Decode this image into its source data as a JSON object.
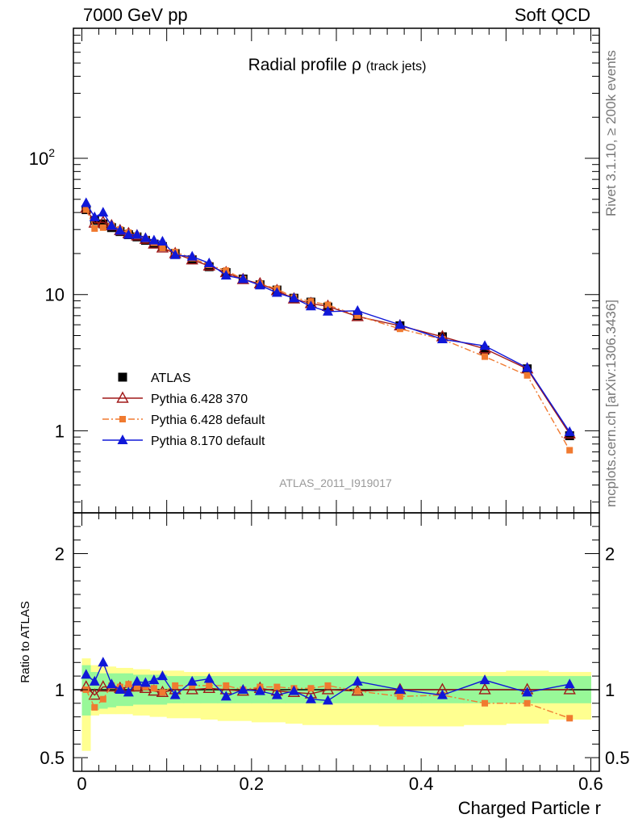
{
  "header": {
    "left": "7000 GeV pp",
    "right": "Soft QCD"
  },
  "side_labels": {
    "rivet": "Rivet 3.1.10, ≥ 200k events",
    "mcplots": "mcplots.cern.ch [arXiv:1306.3436]"
  },
  "chart_data": [
    {
      "panel": "main",
      "type": "scatter",
      "title": "Radial profile ρ",
      "title_suffix": "(track jets)",
      "xlabel": "Charged Particle r",
      "ylabel": "",
      "yscale": "log",
      "xlim": [
        -0.01,
        0.61
      ],
      "ylim": [
        0.25,
        900
      ],
      "yticks": [
        {
          "value": 1,
          "label": "1"
        },
        {
          "value": 10,
          "label": "10"
        },
        {
          "value": 100,
          "label": "10",
          "sup": "2"
        }
      ],
      "watermark": "ATLAS_2011_I919017",
      "legend_position": "middle-left",
      "x": [
        0.005,
        0.015,
        0.025,
        0.035,
        0.045,
        0.055,
        0.065,
        0.075,
        0.085,
        0.095,
        0.11,
        0.13,
        0.15,
        0.17,
        0.19,
        0.21,
        0.23,
        0.25,
        0.27,
        0.29,
        0.325,
        0.375,
        0.425,
        0.475,
        0.525,
        0.575
      ],
      "series": [
        {
          "name": "ATLAS",
          "color": "#000000",
          "marker": "square-filled",
          "values": [
            42,
            35,
            33,
            31,
            29,
            27.5,
            26.5,
            25,
            23.5,
            22.5,
            20,
            18,
            16,
            14.5,
            13,
            11.8,
            10.8,
            9.4,
            8.8,
            8.1,
            7.0,
            5.9,
            4.9,
            3.9,
            2.85,
            0.92
          ]
        },
        {
          "name": "Pythia 6.428 370",
          "color": "#a01818",
          "marker": "triangle-open",
          "line": "solid",
          "values": [
            43,
            33.5,
            34,
            32,
            29.5,
            28,
            27,
            25.5,
            23.5,
            22,
            20,
            18,
            16.2,
            14.5,
            12.9,
            12.0,
            10.7,
            9.3,
            8.6,
            8.2,
            6.9,
            5.9,
            4.9,
            4.0,
            2.85,
            0.95
          ]
        },
        {
          "name": "Pythia 6.428 default",
          "color": "#f07a30",
          "marker": "square-filled",
          "line": "dashdot",
          "values": [
            42,
            30.5,
            31,
            32,
            30,
            28.5,
            27,
            25.5,
            24,
            22,
            20.5,
            18.5,
            16.5,
            15,
            13,
            12.0,
            11.0,
            9.5,
            8.9,
            8.4,
            7.0,
            5.6,
            4.7,
            3.5,
            2.55,
            0.72
          ]
        },
        {
          "name": "Pythia 8.170 default",
          "color": "#1018d8",
          "marker": "triangle-filled",
          "line": "solid",
          "values": [
            47,
            37,
            40,
            32,
            29.5,
            27.5,
            27.5,
            26,
            25,
            24.5,
            19.5,
            19,
            17,
            13.8,
            13,
            11.7,
            10.3,
            9.4,
            8.2,
            7.5,
            7.6,
            6.0,
            4.7,
            4.2,
            2.9,
            0.98
          ]
        }
      ]
    },
    {
      "panel": "ratio",
      "type": "scatter",
      "ylabel": "Ratio to ATLAS",
      "xlabel": "Charged Particle r",
      "xlim": [
        -0.01,
        0.61
      ],
      "ylim": [
        0.4,
        2.3
      ],
      "xticks": [
        0,
        0.2,
        0.4,
        0.6
      ],
      "xtick_labels": [
        "0",
        "0.2",
        "0.4",
        "0.6"
      ],
      "yticks": [
        0.5,
        1,
        2
      ],
      "ytick_labels": [
        "0.5",
        "1",
        "2"
      ],
      "x_edges": [
        0,
        0.01,
        0.02,
        0.03,
        0.04,
        0.05,
        0.06,
        0.07,
        0.08,
        0.09,
        0.1,
        0.12,
        0.14,
        0.16,
        0.18,
        0.2,
        0.22,
        0.24,
        0.26,
        0.28,
        0.3,
        0.35,
        0.4,
        0.45,
        0.5,
        0.55,
        0.6
      ],
      "band_inner": [
        [
          0.81,
          1.18
        ],
        [
          0.85,
          1.13
        ],
        [
          0.86,
          1.12
        ],
        [
          0.87,
          1.12
        ],
        [
          0.88,
          1.12
        ],
        [
          0.88,
          1.12
        ],
        [
          0.89,
          1.11
        ],
        [
          0.89,
          1.11
        ],
        [
          0.89,
          1.11
        ],
        [
          0.89,
          1.11
        ],
        [
          0.9,
          1.1
        ],
        [
          0.9,
          1.1
        ],
        [
          0.9,
          1.1
        ],
        [
          0.9,
          1.1
        ],
        [
          0.9,
          1.1
        ],
        [
          0.9,
          1.1
        ],
        [
          0.9,
          1.1
        ],
        [
          0.9,
          1.1
        ],
        [
          0.9,
          1.1
        ],
        [
          0.9,
          1.1
        ],
        [
          0.9,
          1.1
        ],
        [
          0.9,
          1.1
        ],
        [
          0.9,
          1.1
        ],
        [
          0.9,
          1.1
        ],
        [
          0.9,
          1.1
        ],
        [
          0.9,
          1.1
        ]
      ],
      "band_outer": [
        [
          0.55,
          1.23
        ],
        [
          0.81,
          1.18
        ],
        [
          0.82,
          1.17
        ],
        [
          0.82,
          1.17
        ],
        [
          0.82,
          1.16
        ],
        [
          0.82,
          1.16
        ],
        [
          0.81,
          1.15
        ],
        [
          0.81,
          1.15
        ],
        [
          0.8,
          1.14
        ],
        [
          0.8,
          1.14
        ],
        [
          0.79,
          1.14
        ],
        [
          0.79,
          1.13
        ],
        [
          0.78,
          1.13
        ],
        [
          0.77,
          1.13
        ],
        [
          0.77,
          1.13
        ],
        [
          0.76,
          1.13
        ],
        [
          0.76,
          1.13
        ],
        [
          0.75,
          1.13
        ],
        [
          0.74,
          1.13
        ],
        [
          0.74,
          1.13
        ],
        [
          0.74,
          1.13
        ],
        [
          0.73,
          1.13
        ],
        [
          0.73,
          1.13
        ],
        [
          0.74,
          1.13
        ],
        [
          0.75,
          1.14
        ],
        [
          0.78,
          1.13
        ]
      ],
      "x": [
        0.005,
        0.015,
        0.025,
        0.035,
        0.045,
        0.055,
        0.065,
        0.075,
        0.085,
        0.095,
        0.11,
        0.13,
        0.15,
        0.17,
        0.19,
        0.21,
        0.23,
        0.25,
        0.27,
        0.29,
        0.325,
        0.375,
        0.425,
        0.475,
        0.525,
        0.575
      ],
      "series": [
        {
          "name": "Pythia 6.428 370",
          "color": "#a01818",
          "marker": "triangle-open",
          "line": "solid",
          "values": [
            1.02,
            0.96,
            1.02,
            1.02,
            1.01,
            1.02,
            1.02,
            1.01,
            0.99,
            0.98,
            1.0,
            1.0,
            1.01,
            1.0,
            0.99,
            1.01,
            0.99,
            0.98,
            0.97,
            1.0,
            0.99,
            1.0,
            1.0,
            1.0,
            1.0,
            1.0
          ]
        },
        {
          "name": "Pythia 6.428 default",
          "color": "#f07a30",
          "marker": "square-filled",
          "line": "dashdot",
          "values": [
            1.0,
            0.87,
            0.93,
            1.03,
            1.02,
            1.04,
            1.02,
            1.02,
            1.01,
            0.98,
            1.03,
            1.03,
            1.03,
            1.03,
            1.0,
            1.02,
            1.02,
            1.01,
            1.01,
            1.03,
            0.99,
            0.95,
            0.96,
            0.9,
            0.9,
            0.79
          ]
        },
        {
          "name": "Pythia 8.170 default",
          "color": "#1018d8",
          "marker": "triangle-filled",
          "line": "solid",
          "values": [
            1.11,
            1.06,
            1.2,
            1.04,
            1.0,
            0.98,
            1.06,
            1.05,
            1.07,
            1.1,
            0.96,
            1.06,
            1.08,
            0.95,
            1.0,
            0.99,
            0.96,
            0.99,
            0.93,
            0.92,
            1.06,
            1.0,
            0.96,
            1.07,
            0.98,
            1.04
          ]
        }
      ]
    }
  ]
}
